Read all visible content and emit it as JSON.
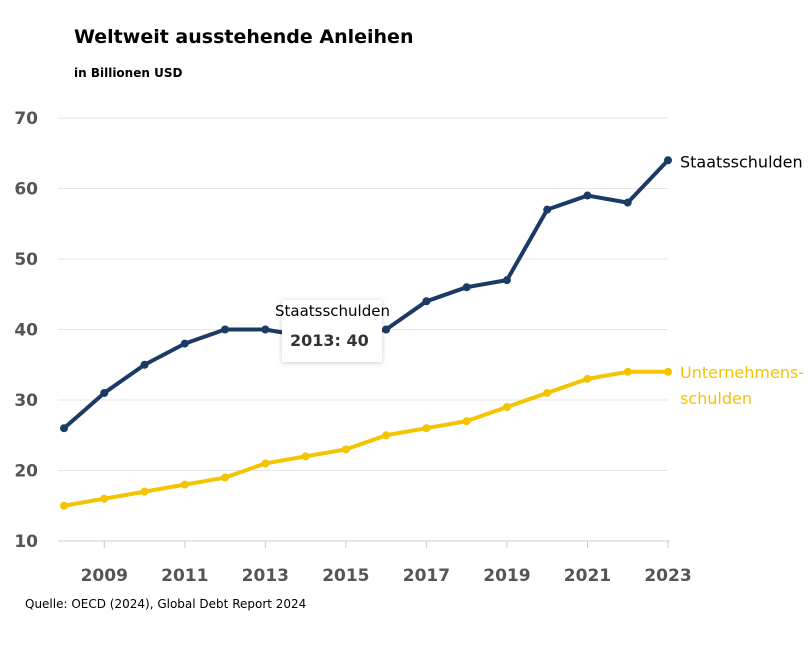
{
  "chart_data": {
    "type": "line",
    "title": "Weltweit ausstehende Anleihen",
    "subtitle": "in Billionen USD",
    "source": "Quelle: OECD (2024), Global Debt Report 2024",
    "x": [
      2008,
      2009,
      2010,
      2011,
      2012,
      2013,
      2014,
      2015,
      2016,
      2017,
      2018,
      2019,
      2020,
      2021,
      2022,
      2023
    ],
    "xticks": [
      "2009",
      "2011",
      "2013",
      "2015",
      "2017",
      "2019",
      "2021",
      "2023"
    ],
    "yticks": [
      "10",
      "20",
      "30",
      "40",
      "50",
      "60",
      "70"
    ],
    "ylim": [
      10,
      70
    ],
    "grid": true,
    "series": [
      {
        "name": "Staatsschulden",
        "color": "#1b3a64",
        "values": [
          26,
          31,
          35,
          38,
          40,
          40,
          39,
          39,
          40,
          44,
          46,
          47,
          57,
          59,
          58,
          64
        ]
      },
      {
        "name": "Unternehmens-\nschulden",
        "name_lines": [
          "Unternehmens-",
          "schulden"
        ],
        "color": "#f5c400",
        "values": [
          15,
          16,
          17,
          18,
          19,
          21,
          22,
          23,
          25,
          26,
          27,
          29,
          31,
          33,
          34,
          34
        ]
      }
    ],
    "tooltip": {
      "series": "Staatsschulden",
      "label": "2013: 40"
    }
  }
}
